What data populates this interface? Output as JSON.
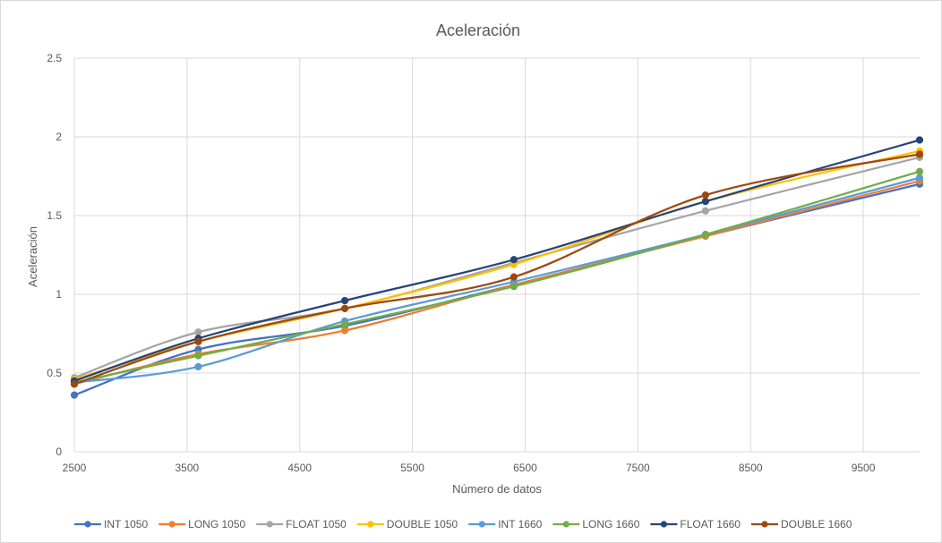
{
  "chart_data": {
    "type": "line",
    "title": "Aceleración",
    "xlabel": "Número de datos",
    "ylabel": "Aceleración",
    "xlim": [
      2500,
      10000
    ],
    "ylim": [
      0,
      2.5
    ],
    "x_ticks": [
      "2500",
      "3500",
      "4500",
      "5500",
      "6500",
      "7500",
      "8500",
      "9500"
    ],
    "y_ticks": [
      "0",
      "0.5",
      "1",
      "1.5",
      "2",
      "2.5"
    ],
    "grid": true,
    "smooth": true,
    "legend_position": "bottom",
    "x": [
      2500,
      3600,
      4900,
      6400,
      8100,
      10000
    ],
    "series": [
      {
        "name": "INT 1050",
        "color": "#4472C4",
        "values": [
          0.36,
          0.65,
          0.8,
          1.06,
          1.37,
          1.7
        ]
      },
      {
        "name": "LONG 1050",
        "color": "#ED7D31",
        "values": [
          0.43,
          0.62,
          0.77,
          1.06,
          1.37,
          1.72
        ]
      },
      {
        "name": "FLOAT 1050",
        "color": "#A5A5A5",
        "values": [
          0.47,
          0.76,
          0.91,
          1.2,
          1.53,
          1.87
        ]
      },
      {
        "name": "DOUBLE 1050",
        "color": "#FFC000",
        "values": [
          0.46,
          0.7,
          0.91,
          1.19,
          1.59,
          1.91
        ]
      },
      {
        "name": "INT 1660",
        "color": "#5B9BD5",
        "values": [
          0.44,
          0.54,
          0.83,
          1.08,
          1.38,
          1.74
        ]
      },
      {
        "name": "LONG 1660",
        "color": "#70AD47",
        "values": [
          0.44,
          0.61,
          0.81,
          1.05,
          1.38,
          1.78
        ]
      },
      {
        "name": "FLOAT 1660",
        "color": "#264478",
        "values": [
          0.45,
          0.72,
          0.96,
          1.22,
          1.59,
          1.98
        ]
      },
      {
        "name": "DOUBLE 1660",
        "color": "#9E480E",
        "values": [
          0.43,
          0.7,
          0.91,
          1.11,
          1.63,
          1.89
        ]
      }
    ]
  }
}
